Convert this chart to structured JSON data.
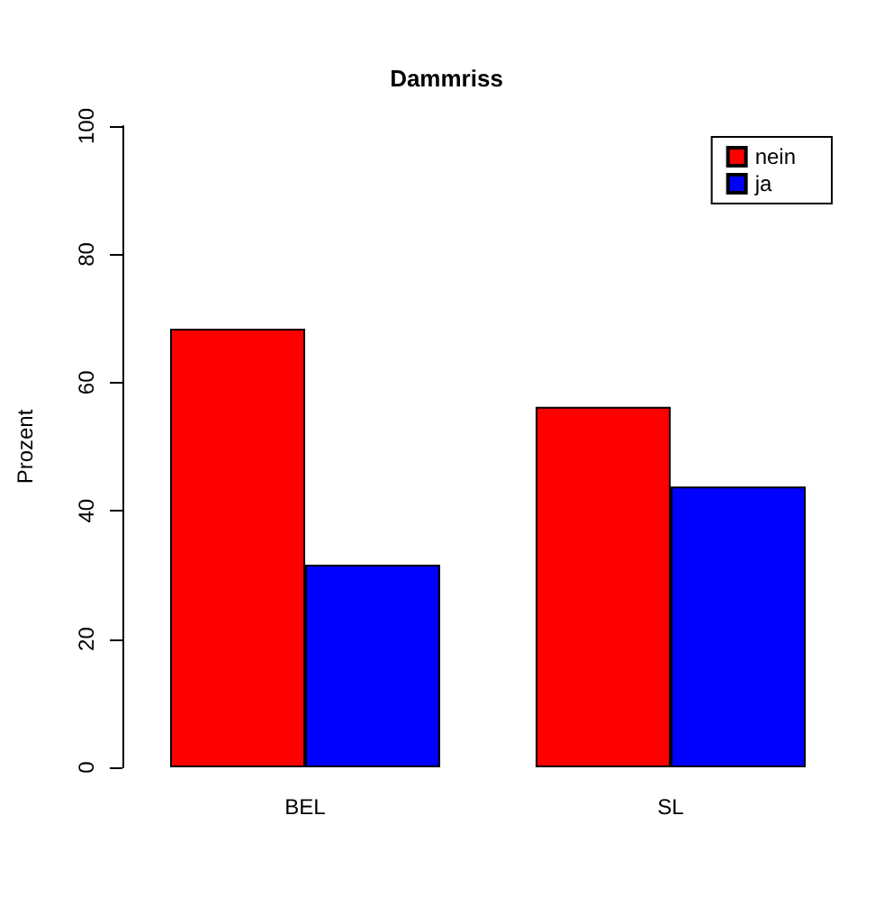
{
  "chart_data": {
    "type": "bar",
    "title": "Dammriss",
    "ylabel": "Prozent",
    "categories": [
      "BEL",
      "SL"
    ],
    "series": [
      {
        "name": "nein",
        "color": "#ff0000",
        "values": [
          68.4,
          56.2
        ]
      },
      {
        "name": "ja",
        "color": "#0000ff",
        "values": [
          31.6,
          43.8
        ]
      }
    ],
    "ylim": [
      0,
      100
    ],
    "yticks": [
      0,
      20,
      40,
      60,
      80,
      100
    ],
    "grid": false,
    "legend": "top right"
  }
}
